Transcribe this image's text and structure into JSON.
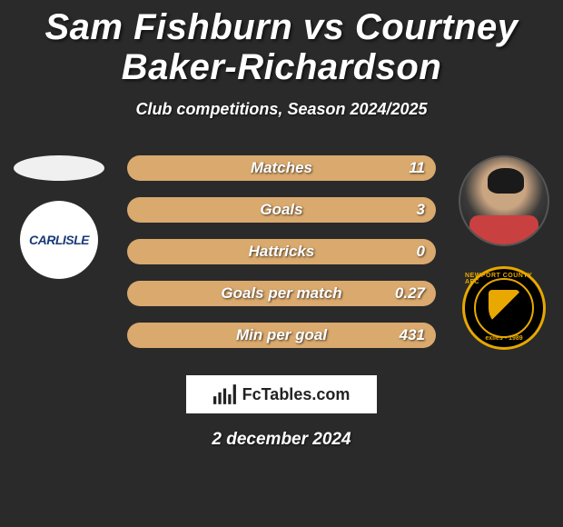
{
  "title": "Sam Fishburn vs Courtney Baker-Richardson",
  "title_fontsize": 40,
  "title_color": "#ffffff",
  "subtitle": "Club competitions, Season 2024/2025",
  "subtitle_fontsize": 18,
  "background_color": "#2a2a2a",
  "player_left": {
    "name": "Sam Fishburn",
    "club_label": "CARLISLE",
    "club_text_color": "#1a3a7a"
  },
  "player_right": {
    "name": "Courtney Baker-Richardson",
    "club_top": "NEWPORT COUNTY AFC",
    "club_bottom": "exiles • 1989",
    "club_ring_color": "#e8a800"
  },
  "stats": {
    "bar_bg_color": "#d9a96e",
    "bar_border_radius": 14,
    "label_fontsize": 17,
    "value_fontsize": 17,
    "rows": [
      {
        "label": "Matches",
        "value": "11"
      },
      {
        "label": "Goals",
        "value": "3"
      },
      {
        "label": "Hattricks",
        "value": "0"
      },
      {
        "label": "Goals per match",
        "value": "0.27"
      },
      {
        "label": "Min per goal",
        "value": "431"
      }
    ]
  },
  "footer": {
    "brand": "FcTables.com",
    "date": "2 december 2024",
    "date_fontsize": 19
  }
}
